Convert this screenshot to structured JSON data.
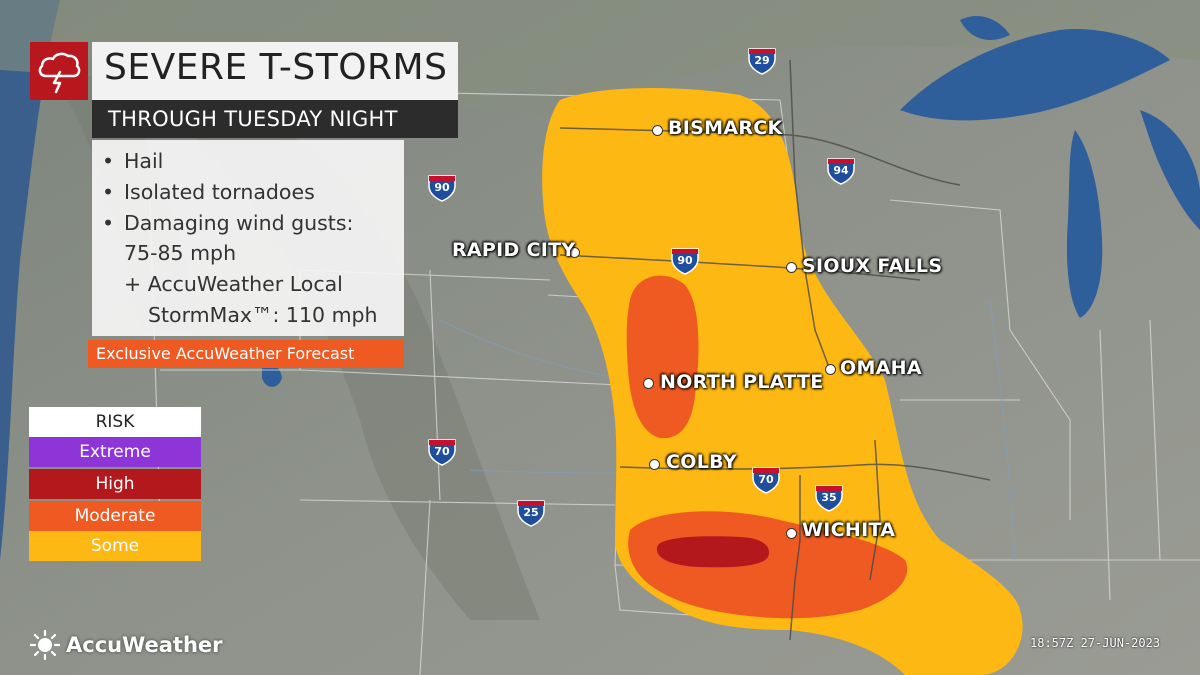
{
  "title": "SEVERE T-STORMS",
  "subtitle": "THROUGH TUESDAY NIGHT",
  "threats": [
    "Hail",
    "Isolated tornadoes",
    "Damaging wind gusts:",
    "75-85 mph",
    "+ AccuWeather Local",
    "StormMax™: 110 mph"
  ],
  "exclusive_note": "Exclusive AccuWeather Forecast",
  "legend": {
    "title": "RISK",
    "levels": [
      {
        "label": "Extreme",
        "color": "#8e35d8"
      },
      {
        "label": "High",
        "color": "#b3191c"
      },
      {
        "label": "Moderate",
        "color": "#ee5a22"
      },
      {
        "label": "Some",
        "color": "#fdb813"
      }
    ]
  },
  "cities": [
    "BISMARCK",
    "RAPID CITY",
    "SIOUX FALLS",
    "OMAHA",
    "NORTH PLATTE",
    "COLBY",
    "WICHITA"
  ],
  "interstates": [
    "29",
    "94",
    "90",
    "90",
    "70",
    "70",
    "35",
    "25"
  ],
  "colors": {
    "land": "#8a8f88",
    "water": "#2f5f9a",
    "risk_some": "#fdb813",
    "risk_moderate": "#ee5a22",
    "risk_high": "#b3191c",
    "interstate_blue": "#1f4f9c",
    "interstate_red": "#c8102e"
  },
  "brand": "AccuWeather",
  "timestamp": "18:57Z 27-JUN-2023",
  "icons": [
    "thunderstorm-icon",
    "interstate-shield-icon",
    "accuweather-sun-icon"
  ]
}
